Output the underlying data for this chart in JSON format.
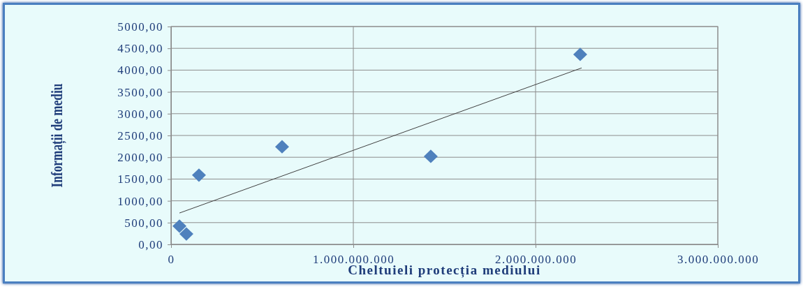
{
  "chart_data": {
    "type": "scatter",
    "xlabel": "Cheltuieli protecția mediului",
    "ylabel": "Informații de mediu",
    "series": [
      {
        "color": "#4f81bd",
        "marker": "diamond",
        "x": [
          46000000,
          84000000,
          153000000,
          609000000,
          1425000000,
          2245000000
        ],
        "values": [
          420,
          240,
          1590,
          2240,
          2020,
          4360
        ]
      },
      {
        "type": "line",
        "color": "#404040",
        "marker": "none",
        "line_style": "solid",
        "x": [
          46000000,
          2253000000
        ],
        "values": [
          720,
          4050
        ]
      }
    ],
    "xlim": [
      0,
      3000000000
    ],
    "xticks": [
      0,
      {
        "value": 1000000000,
        "label": "1.000.000.000"
      },
      {
        "value": 2000000000,
        "label": "2.000.000.000"
      },
      {
        "value": 3000000000,
        "label": "3.000.000.000"
      }
    ],
    "ylim": [
      0,
      5000
    ],
    "yticks": [
      {
        "value": 0,
        "label": "0,00"
      },
      {
        "value": 500,
        "label": "500,00"
      },
      {
        "value": 1000,
        "label": "1000,00"
      },
      {
        "value": 1500,
        "label": "1500,00"
      },
      {
        "value": 2000,
        "label": "2000,00"
      },
      {
        "value": 2500,
        "label": "2500,00"
      },
      {
        "value": 3000,
        "label": "3000,00"
      },
      {
        "value": 3500,
        "label": "3500,00"
      },
      {
        "value": 4000,
        "label": "4000,00"
      },
      {
        "value": 4500,
        "label": "4500,00"
      },
      {
        "value": 5000,
        "label": "5000,00"
      }
    ],
    "grid": true
  }
}
